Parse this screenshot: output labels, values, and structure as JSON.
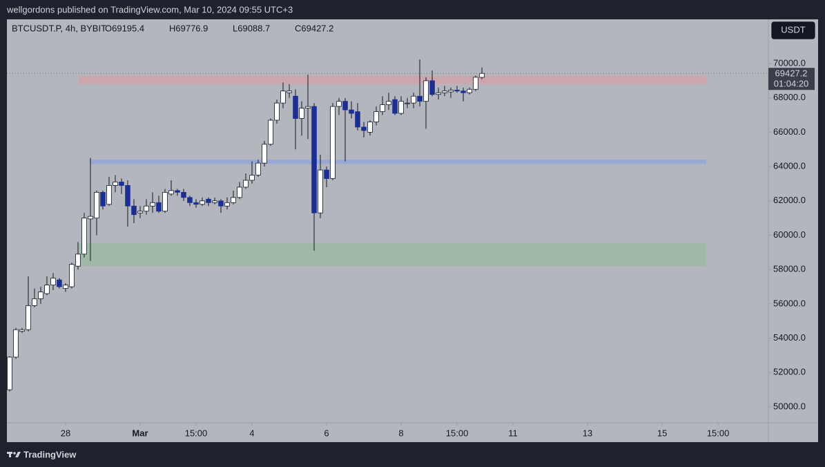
{
  "header": {
    "title": "wellgordons published on TradingView.com, Mar 10, 2024 09:55 UTC+3"
  },
  "chart_data": {
    "type": "candlestick",
    "symbol": "BTCUSDT.P, 4h, BYBIT",
    "ohlc_legend": [
      "O69195.4",
      "H69776.9",
      "L69088.7",
      "C69427.2"
    ],
    "currency": "USDT",
    "countdown": "01:04:20",
    "categories": [
      null,
      null,
      null,
      null,
      null,
      null,
      null,
      null,
      null,
      null,
      null,
      null,
      null,
      null,
      null,
      null,
      null,
      null,
      null,
      null,
      null,
      null,
      null,
      null,
      null,
      null,
      null,
      null,
      null,
      null,
      null,
      null,
      null,
      null,
      null,
      null,
      null,
      null,
      null,
      null,
      null,
      null,
      null,
      null,
      null,
      null,
      null,
      null,
      null,
      null,
      null,
      null,
      null,
      null,
      null,
      null,
      null,
      null,
      null,
      null,
      null,
      null,
      null,
      null,
      null,
      null,
      null,
      null,
      null,
      null,
      null,
      null,
      null,
      null,
      null,
      null,
      null
    ],
    "open": [
      51000,
      52900,
      54400,
      54500,
      55900,
      56300,
      56600,
      57100,
      57400,
      56900,
      57000,
      58200,
      58900,
      60950,
      61000,
      62500,
      61800,
      62900,
      63100,
      62900,
      61700,
      61300,
      61400,
      61700,
      61900,
      61400,
      62400,
      62600,
      62500,
      62200,
      61900,
      61800,
      62100,
      61900,
      62000,
      61700,
      61900,
      62200,
      62800,
      63200,
      63500,
      64200,
      65300,
      66700,
      67700,
      68300,
      68100,
      66800,
      67400,
      67500,
      61300,
      63800,
      63300,
      67500,
      67800,
      67300,
      67200,
      66300,
      66000,
      66600,
      67200,
      67600,
      67900,
      67100,
      67700,
      67700,
      68100,
      67800,
      69000,
      68200,
      68300,
      68350,
      68450,
      68400,
      68300,
      68500,
      69195.4
    ],
    "high": [
      52950,
      54600,
      54600,
      57600,
      56900,
      57000,
      57600,
      57800,
      57500,
      57200,
      58400,
      59600,
      61300,
      64500,
      62600,
      62600,
      63400,
      63500,
      63300,
      63200,
      62100,
      61700,
      62100,
      62500,
      62300,
      62700,
      63200,
      62700,
      62700,
      62300,
      62100,
      62200,
      62200,
      62200,
      62100,
      62200,
      62600,
      63100,
      63600,
      64300,
      64400,
      65500,
      66800,
      67900,
      68900,
      68800,
      68500,
      67800,
      69350,
      67700,
      64700,
      64000,
      67700,
      68000,
      68000,
      67800,
      67700,
      66600,
      66700,
      67500,
      68100,
      68300,
      68100,
      68100,
      68000,
      68300,
      70240,
      69200,
      69600,
      68600,
      68700,
      68600,
      68700,
      68600,
      68600,
      69300,
      69776.9
    ],
    "low": [
      50900,
      52800,
      54300,
      54400,
      55800,
      56000,
      56500,
      56800,
      56900,
      56700,
      56900,
      58000,
      58700,
      58500,
      60000,
      61500,
      61700,
      62500,
      62400,
      60500,
      60700,
      61000,
      61200,
      61300,
      61300,
      61300,
      62300,
      62300,
      62000,
      61700,
      61600,
      61700,
      61700,
      61800,
      61300,
      61500,
      61800,
      62100,
      62700,
      63000,
      63400,
      64000,
      65200,
      66500,
      67400,
      68000,
      65000,
      65800,
      65600,
      59100,
      61000,
      62800,
      63200,
      67000,
      64300,
      66800,
      66100,
      65700,
      65800,
      66400,
      67000,
      67300,
      67000,
      67000,
      67400,
      67400,
      67500,
      66200,
      68100,
      67900,
      68100,
      68000,
      68300,
      67800,
      68200,
      68400,
      69088.7
    ],
    "close": [
      52900,
      54500,
      54500,
      55900,
      56300,
      56700,
      57100,
      57500,
      57000,
      57100,
      58300,
      58900,
      61000,
      61100,
      62500,
      61700,
      62900,
      63100,
      62900,
      61700,
      61200,
      61400,
      61700,
      61900,
      61400,
      62500,
      62600,
      62500,
      62200,
      61900,
      61800,
      62000,
      61900,
      62000,
      61700,
      61900,
      62200,
      62800,
      63200,
      63500,
      64200,
      65300,
      66700,
      67700,
      68400,
      68400,
      66800,
      67400,
      67500,
      61300,
      63800,
      63300,
      67500,
      67800,
      67300,
      67100,
      66300,
      66100,
      66600,
      67200,
      67600,
      67800,
      67100,
      67800,
      67700,
      68100,
      67800,
      69000,
      68200,
      68300,
      68400,
      68450,
      68400,
      68300,
      68500,
      69200,
      69427.2
    ],
    "up_color": "#ffffff",
    "down_color": "#1b2e96",
    "wick_color": "#131722",
    "zones": [
      {
        "color": "#cfa3ab",
        "from": 68800,
        "to": 69280,
        "start": 11.1,
        "end": 112.1
      },
      {
        "color": "#95a5d6",
        "from": 64150,
        "to": 64400,
        "start": 12.9,
        "end": 112.1
      },
      {
        "color": "#9db8a3",
        "from": 58210,
        "to": 59537,
        "start": 11.1,
        "end": 112.1
      }
    ],
    "ylim": [
      49075,
      72575
    ],
    "yticks": [
      {
        "value": 50000,
        "label": "50000.0"
      },
      {
        "value": 52000,
        "label": "52000.0"
      },
      {
        "value": 54000,
        "label": "54000.0"
      },
      {
        "value": 56000,
        "label": "56000.0"
      },
      {
        "value": 58000,
        "label": "58000.0"
      },
      {
        "value": 60000,
        "label": "60000.0"
      },
      {
        "value": 62000,
        "label": "62000.0"
      },
      {
        "value": 64000,
        "label": "64000.0"
      },
      {
        "value": 66000,
        "label": "66000.0"
      },
      {
        "value": 68000,
        "label": "68000.0"
      },
      {
        "value": 70000,
        "label": "70000.0"
      }
    ],
    "xlim": [
      -0.44,
      122.1
    ],
    "xticks": [
      {
        "value": 9,
        "label": "28"
      },
      {
        "value": 21,
        "label": "Mar"
      },
      {
        "value": 30,
        "label": "15:00"
      },
      {
        "value": 39,
        "label": "4"
      },
      {
        "value": 51,
        "label": "6"
      },
      {
        "value": 63,
        "label": "8"
      },
      {
        "value": 72,
        "label": "15:00"
      },
      {
        "value": 81,
        "label": "11"
      },
      {
        "value": 93,
        "label": "13"
      },
      {
        "value": 105,
        "label": "15"
      },
      {
        "value": 114,
        "label": "15:00"
      }
    ],
    "last_price_line": true
  },
  "footer": {
    "brand": "TradingView"
  }
}
